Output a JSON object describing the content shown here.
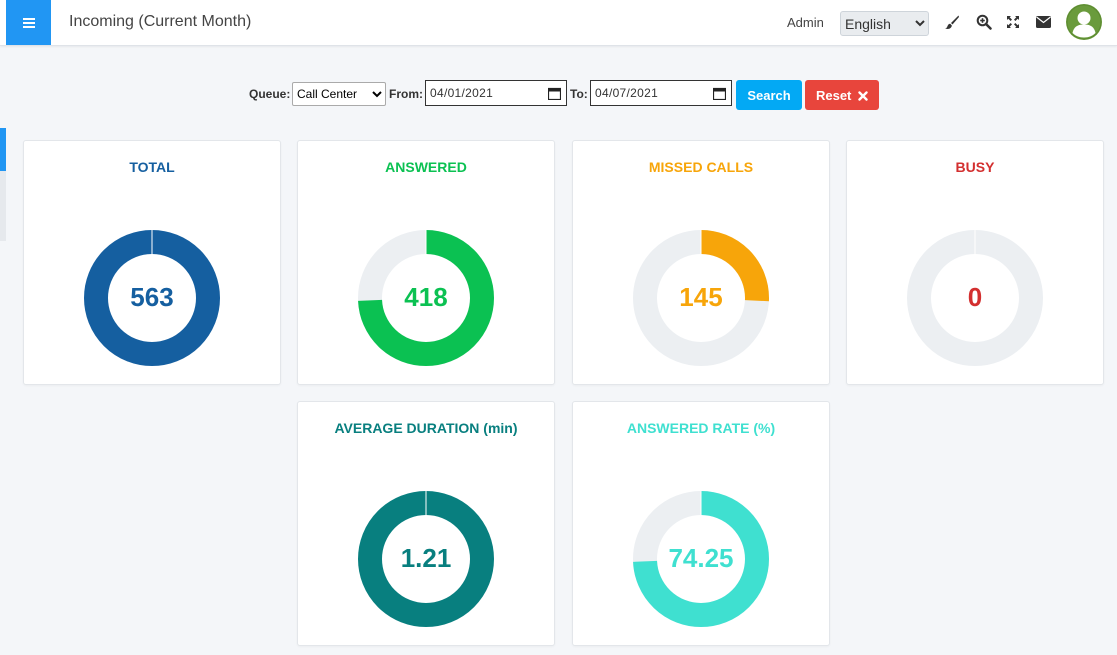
{
  "header": {
    "title": "Incoming (Current Month)",
    "user": "Admin",
    "language": "English",
    "language_options": [
      "English"
    ]
  },
  "filters": {
    "queue_label": "Queue:",
    "queue_value": "Call Center",
    "from_label": "From:",
    "from_value": "04/01/2021",
    "to_label": "To:",
    "to_value": "04/07/2021",
    "search_label": "Search",
    "reset_label": "Reset"
  },
  "cards": [
    {
      "title": "TOTAL",
      "value": "563",
      "fraction": 1.0,
      "color": "#155fa0",
      "track": "#155fa0"
    },
    {
      "title": "ANSWERED",
      "value": "418",
      "fraction": 0.7425,
      "color": "#0bc152",
      "track": "#eceff2"
    },
    {
      "title": "MISSED CALLS",
      "value": "145",
      "fraction": 0.2575,
      "color": "#f7a50a",
      "track": "#eceff2"
    },
    {
      "title": "BUSY",
      "value": "0",
      "fraction": 0.0,
      "color": "#d32f2f",
      "track": "#eceff2"
    },
    {
      "title": "AVERAGE DURATION (min)",
      "value": "1.21",
      "fraction": 1.0,
      "color": "#087f7f",
      "track": "#087f7f"
    },
    {
      "title": "ANSWERED RATE (%)",
      "value": "74.25",
      "fraction": 0.7425,
      "color": "#3fe0d0",
      "track": "#eceff2"
    }
  ],
  "colors": {
    "accent": "#2196f3",
    "search": "#03a9f4",
    "reset": "#e8453c"
  }
}
